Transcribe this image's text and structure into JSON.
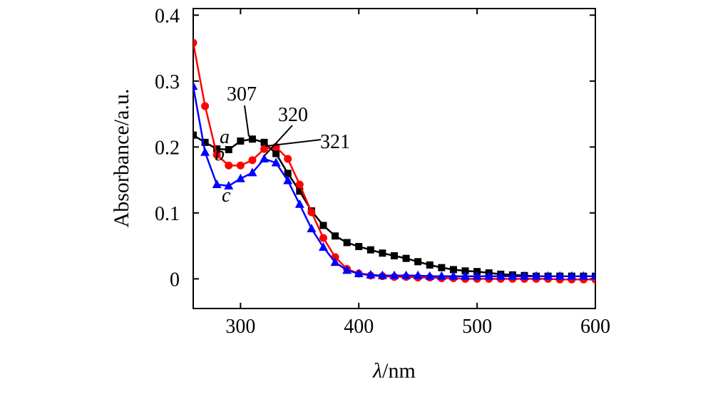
{
  "chart_data": {
    "type": "line",
    "title": "",
    "xlabel_italic": "λ",
    "xlabel_rest": "/nm",
    "ylabel": "Absorbance/a.u.",
    "xlim": [
      260,
      600
    ],
    "ylim": [
      -0.045,
      0.41
    ],
    "xticks": [
      300,
      400,
      500,
      600
    ],
    "yticks": [
      0,
      0.1,
      0.2,
      0.3,
      0.4
    ],
    "ytick_labels": [
      "0",
      "0.1",
      "0.2",
      "0.3",
      "0.4"
    ],
    "grid": false,
    "series": [
      {
        "name": "a",
        "color": "#000000",
        "marker": "square",
        "x": [
          260,
          270,
          280,
          290,
          300,
          310,
          320,
          330,
          340,
          350,
          360,
          370,
          380,
          390,
          400,
          410,
          420,
          430,
          440,
          450,
          460,
          470,
          480,
          490,
          500,
          510,
          520,
          530,
          540,
          550,
          560,
          570,
          580,
          590,
          600
        ],
        "y": [
          0.218,
          0.207,
          0.197,
          0.196,
          0.209,
          0.212,
          0.207,
          0.19,
          0.16,
          0.133,
          0.103,
          0.081,
          0.065,
          0.055,
          0.049,
          0.044,
          0.039,
          0.035,
          0.031,
          0.026,
          0.021,
          0.017,
          0.014,
          0.012,
          0.011,
          0.009,
          0.007,
          0.006,
          0.005,
          0.004,
          0.004,
          0.004,
          0.004,
          0.004,
          0.004
        ]
      },
      {
        "name": "b",
        "color": "#ff0000",
        "marker": "circle",
        "x": [
          260,
          270,
          280,
          290,
          300,
          310,
          320,
          330,
          340,
          350,
          360,
          370,
          380,
          390,
          400,
          410,
          420,
          430,
          440,
          450,
          460,
          470,
          480,
          490,
          500,
          510,
          520,
          530,
          540,
          550,
          560,
          570,
          580,
          590,
          600
        ],
        "y": [
          0.358,
          0.262,
          0.188,
          0.172,
          0.172,
          0.18,
          0.197,
          0.2,
          0.182,
          0.143,
          0.101,
          0.062,
          0.033,
          0.015,
          0.008,
          0.005,
          0.004,
          0.003,
          0.003,
          0.002,
          0.002,
          0.001,
          0.001,
          0.0,
          0.0,
          0.0,
          0.0,
          0.0,
          0.0,
          0.0,
          0.0,
          -0.001,
          -0.001,
          -0.001,
          -0.001
        ]
      },
      {
        "name": "c",
        "color": "#0000ff",
        "marker": "triangle",
        "x": [
          260,
          270,
          280,
          290,
          300,
          310,
          320,
          330,
          340,
          350,
          360,
          370,
          380,
          390,
          400,
          410,
          420,
          430,
          440,
          450,
          460,
          470,
          480,
          490,
          500,
          510,
          520,
          530,
          540,
          550,
          560,
          570,
          580,
          590,
          600
        ],
        "y": [
          0.292,
          0.192,
          0.143,
          0.141,
          0.152,
          0.161,
          0.182,
          0.176,
          0.149,
          0.113,
          0.076,
          0.048,
          0.025,
          0.013,
          0.008,
          0.006,
          0.005,
          0.005,
          0.005,
          0.005,
          0.004,
          0.004,
          0.004,
          0.004,
          0.004,
          0.004,
          0.004,
          0.004,
          0.004,
          0.004,
          0.004,
          0.004,
          0.004,
          0.004,
          0.004
        ]
      }
    ],
    "annotations": [
      {
        "text": "307",
        "x": 307,
        "y": 0.213
      },
      {
        "text": "320",
        "x": 320,
        "y": 0.183
      },
      {
        "text": "321",
        "x": 321,
        "y": 0.198
      }
    ]
  }
}
